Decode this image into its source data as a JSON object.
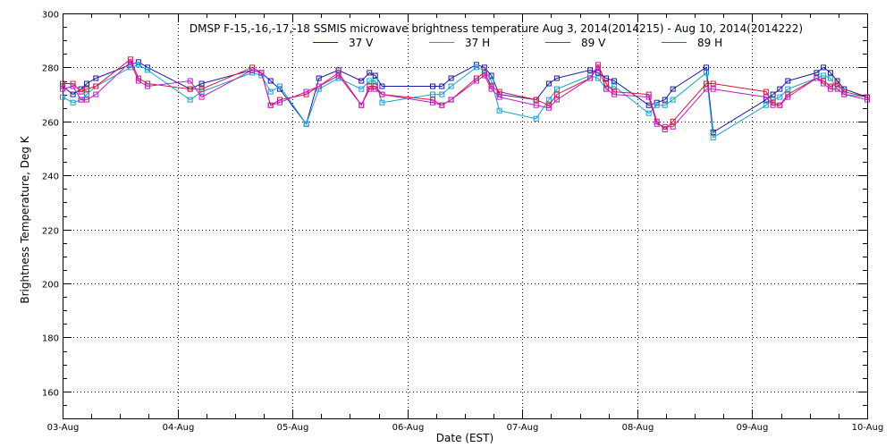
{
  "chart_data": {
    "type": "line",
    "title": "DMSP F-15,-16,-17,-18 SSMIS microwave brightness temperature Aug  3, 2014(2014215) - Aug 10, 2014(2014222)",
    "xlabel": "Date (EST)",
    "ylabel": "Brightness Temperature, Deg K",
    "xlim": [
      0,
      7
    ],
    "ylim": [
      150,
      300
    ],
    "x_ticks": [
      0,
      1,
      2,
      3,
      4,
      5,
      6,
      7
    ],
    "x_tick_labels": [
      "03-Aug",
      "04-Aug",
      "05-Aug",
      "06-Aug",
      "07-Aug",
      "08-Aug",
      "09-Aug",
      "10-Aug"
    ],
    "y_ticks": [
      160,
      180,
      200,
      220,
      240,
      260,
      280,
      300
    ],
    "grid": true,
    "legend_position": "top-center",
    "x": [
      0.0,
      0.09,
      0.16,
      0.21,
      0.29,
      0.59,
      0.66,
      0.74,
      1.11,
      1.21,
      1.65,
      1.73,
      1.81,
      1.89,
      2.12,
      2.23,
      2.4,
      2.6,
      2.67,
      2.72,
      2.78,
      3.22,
      3.3,
      3.38,
      3.6,
      3.67,
      3.73,
      3.8,
      4.12,
      4.23,
      4.3,
      4.59,
      4.66,
      4.73,
      4.8,
      5.1,
      5.17,
      5.24,
      5.31,
      5.6,
      5.66,
      6.12,
      6.18,
      6.24,
      6.31,
      6.56,
      6.62,
      6.68,
      6.74,
      6.8,
      7.0
    ],
    "series": [
      {
        "name": "37 V",
        "color": "#1a1aa0",
        "values": [
          273,
          270,
          272,
          274,
          276,
          281,
          282,
          280,
          272,
          274,
          279,
          278,
          275,
          272,
          259,
          276,
          279,
          275,
          278,
          277,
          273,
          273,
          273,
          276,
          281,
          280,
          277,
          270,
          268,
          274,
          276,
          279,
          278,
          276,
          275,
          266,
          267,
          268,
          272,
          280,
          256,
          268,
          270,
          272,
          275,
          278,
          280,
          278,
          275,
          272,
          269
        ]
      },
      {
        "name": "37 H",
        "color": "#1aa0c8",
        "values": [
          269,
          267,
          268,
          270,
          273,
          280,
          281,
          279,
          268,
          271,
          278,
          277,
          271,
          273,
          259,
          272,
          276,
          272,
          275,
          275,
          267,
          270,
          270,
          273,
          280,
          279,
          275,
          264,
          261,
          268,
          272,
          277,
          276,
          272,
          273,
          263,
          266,
          266,
          268,
          278,
          254,
          266,
          268,
          269,
          272,
          276,
          277,
          276,
          272,
          270,
          269
        ]
      },
      {
        "name": "89 V",
        "color": "#d01a40",
        "values": [
          274,
          274,
          271,
          272,
          273,
          283,
          276,
          274,
          272,
          272,
          280,
          278,
          266,
          268,
          270,
          273,
          278,
          266,
          273,
          273,
          270,
          268,
          266,
          268,
          276,
          278,
          273,
          271,
          268,
          266,
          270,
          276,
          281,
          274,
          271,
          270,
          260,
          257,
          260,
          274,
          274,
          271,
          267,
          266,
          270,
          276,
          275,
          273,
          274,
          271,
          269
        ]
      },
      {
        "name": "89 H",
        "color": "#c01ac0",
        "values": [
          272,
          273,
          268,
          268,
          270,
          282,
          275,
          273,
          275,
          269,
          279,
          278,
          266,
          267,
          271,
          273,
          277,
          266,
          272,
          272,
          270,
          267,
          266,
          268,
          275,
          277,
          272,
          269,
          266,
          265,
          268,
          276,
          280,
          272,
          270,
          269,
          259,
          258,
          258,
          272,
          272,
          269,
          266,
          266,
          269,
          276,
          274,
          272,
          272,
          270,
          268
        ]
      }
    ]
  }
}
